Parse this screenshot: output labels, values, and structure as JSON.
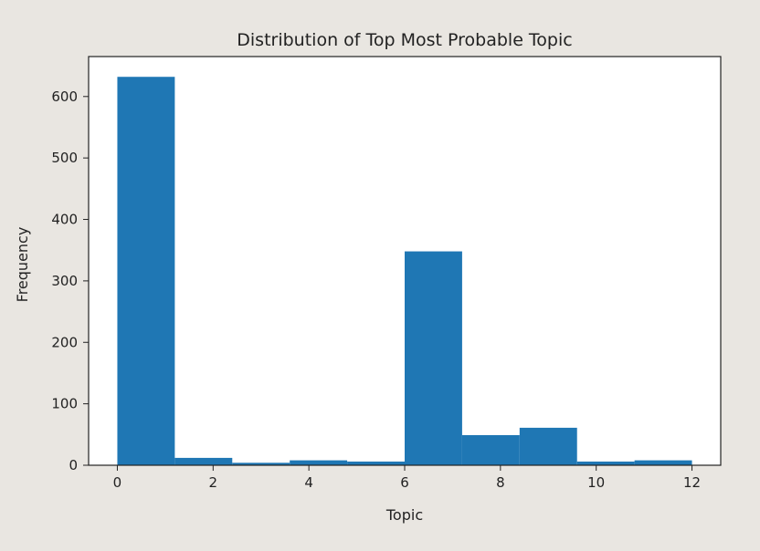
{
  "chart_data": {
    "type": "bar",
    "title": "Distribution of Top Most Probable Topic",
    "xlabel": "Topic",
    "ylabel": "Frequency",
    "xlim": [
      -0.6,
      12.6
    ],
    "ylim": [
      0,
      665
    ],
    "xticks": [
      0,
      2,
      4,
      6,
      8,
      10,
      12
    ],
    "yticks": [
      0,
      100,
      200,
      300,
      400,
      500,
      600
    ],
    "grid": false,
    "bar_color": "#1f77b4",
    "background_color": "#e9e6e1",
    "plot_background_color": "#ffffff",
    "bins": [
      {
        "start": 0.0,
        "end": 1.2,
        "value": 632
      },
      {
        "start": 1.2,
        "end": 2.4,
        "value": 12
      },
      {
        "start": 2.4,
        "end": 3.6,
        "value": 4
      },
      {
        "start": 3.6,
        "end": 4.8,
        "value": 8
      },
      {
        "start": 4.8,
        "end": 6.0,
        "value": 6
      },
      {
        "start": 6.0,
        "end": 7.2,
        "value": 348
      },
      {
        "start": 7.2,
        "end": 8.4,
        "value": 49
      },
      {
        "start": 8.4,
        "end": 9.6,
        "value": 61
      },
      {
        "start": 9.6,
        "end": 10.8,
        "value": 6
      },
      {
        "start": 10.8,
        "end": 12.0,
        "value": 8
      }
    ]
  }
}
